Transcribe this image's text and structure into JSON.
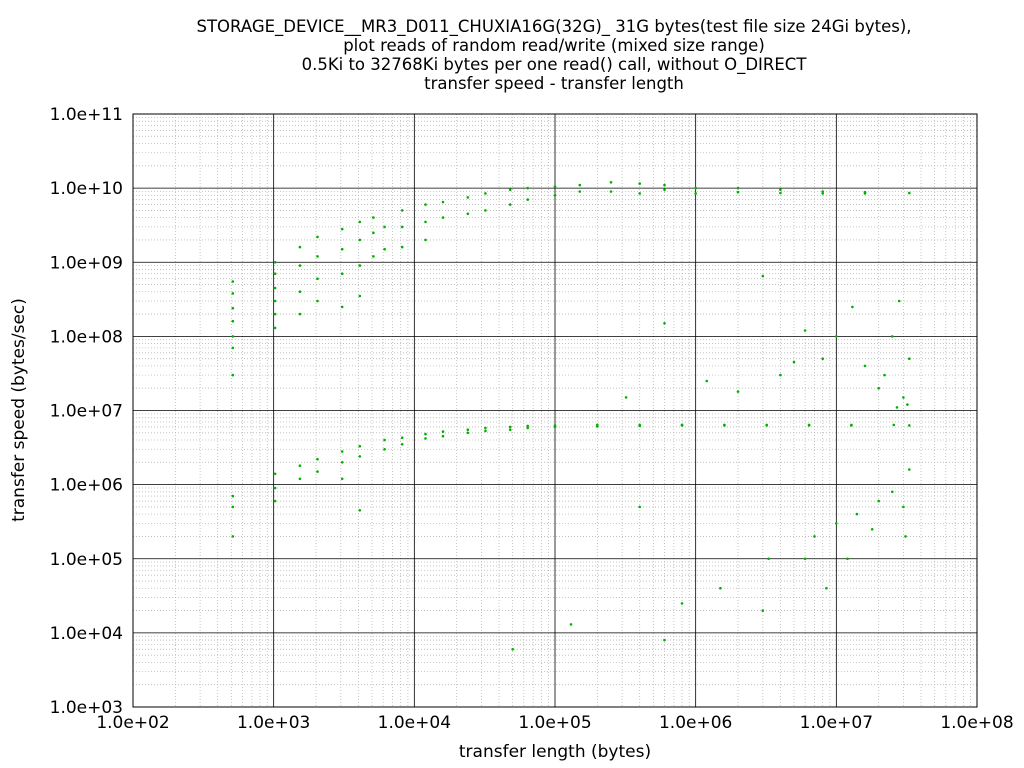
{
  "chart_data": {
    "type": "scatter",
    "title_lines": [
      "STORAGE_DEVICE__MR3_D011_CHUXIA16G(32G)_ 31G bytes(test file size 24Gi bytes),",
      "plot reads of random read/write (mixed size range)",
      "0.5Ki to 32768Ki bytes per one read() call, without O_DIRECT",
      "transfer speed - transfer length"
    ],
    "xlabel": "transfer length (bytes)",
    "ylabel": "transfer speed (bytes/sec)",
    "xscale": "log",
    "yscale": "log",
    "xlim": [
      100,
      100000000
    ],
    "ylim": [
      1000,
      100000000000
    ],
    "x_ticks": [
      "1.0e+02",
      "1.0e+03",
      "1.0e+04",
      "1.0e+05",
      "1.0e+06",
      "1.0e+07",
      "1.0e+08"
    ],
    "y_ticks": [
      "1.0e+03",
      "1.0e+04",
      "1.0e+05",
      "1.0e+06",
      "1.0e+07",
      "1.0e+08",
      "1.0e+09",
      "1.0e+10",
      "1.0e+11"
    ],
    "grid": true,
    "marker_color": "#00b000",
    "series": [
      {
        "points": [
          [
            512,
            550000000.0
          ],
          [
            512,
            380000000.0
          ],
          [
            512,
            240000000.0
          ],
          [
            512,
            160000000.0
          ],
          [
            512,
            100000000.0
          ],
          [
            512,
            70000000.0
          ],
          [
            512,
            30000000.0
          ],
          [
            1024,
            1000000000.0
          ],
          [
            1024,
            700000000.0
          ],
          [
            1024,
            450000000.0
          ],
          [
            1024,
            300000000.0
          ],
          [
            1024,
            200000000.0
          ],
          [
            1024,
            130000000.0
          ],
          [
            1536,
            1600000000.0
          ],
          [
            1536,
            900000000.0
          ],
          [
            1536,
            400000000.0
          ],
          [
            1536,
            200000000.0
          ],
          [
            2048,
            2200000000.0
          ],
          [
            2048,
            1200000000.0
          ],
          [
            2048,
            600000000.0
          ],
          [
            2048,
            300000000.0
          ],
          [
            3072,
            2800000000.0
          ],
          [
            3072,
            1500000000.0
          ],
          [
            3072,
            700000000.0
          ],
          [
            3072,
            250000000.0
          ],
          [
            4096,
            3500000000.0
          ],
          [
            4096,
            2000000000.0
          ],
          [
            4096,
            900000000.0
          ],
          [
            4096,
            350000000.0
          ],
          [
            5120,
            4000000000.0
          ],
          [
            5120,
            2500000000.0
          ],
          [
            5120,
            1200000000.0
          ],
          [
            6144,
            3000000000.0
          ],
          [
            6144,
            1500000000.0
          ],
          [
            8192,
            5000000000.0
          ],
          [
            8192,
            3000000000.0
          ],
          [
            8192,
            1600000000.0
          ],
          [
            12000.0,
            6000000000.0
          ],
          [
            12000.0,
            3500000000.0
          ],
          [
            12000.0,
            2000000000.0
          ],
          [
            16000.0,
            6500000000.0
          ],
          [
            16000.0,
            4000000000.0
          ],
          [
            24000.0,
            7500000000.0
          ],
          [
            24000.0,
            4500000000.0
          ],
          [
            32000.0,
            8500000000.0
          ],
          [
            32000.0,
            5000000000.0
          ],
          [
            48000.0,
            9500000000.0
          ],
          [
            48000.0,
            6000000000.0
          ],
          [
            64000.0,
            10000000000.0
          ],
          [
            64000.0,
            7000000000.0
          ],
          [
            100000.0,
            10500000000.0
          ],
          [
            100000.0,
            8000000000.0
          ],
          [
            150000.0,
            11000000000.0
          ],
          [
            150000.0,
            9000000000.0
          ],
          [
            250000.0,
            12000000000.0
          ],
          [
            250000.0,
            9000000000.0
          ],
          [
            400000.0,
            11500000000.0
          ],
          [
            400000.0,
            8500000000.0
          ],
          [
            600000.0,
            11000000000.0
          ],
          [
            600000.0,
            9500000000.0
          ],
          [
            1000000.0,
            10000000000.0
          ],
          [
            1000000.0,
            8500000000.0
          ],
          [
            2000000.0,
            10000000000.0
          ],
          [
            2000000.0,
            8800000000.0
          ],
          [
            4000000.0,
            9500000000.0
          ],
          [
            4000000.0,
            8600000000.0
          ],
          [
            8000000.0,
            9000000000.0
          ],
          [
            8000000.0,
            8500000000.0
          ],
          [
            16000000.0,
            8800000000.0
          ],
          [
            16000000.0,
            8500000000.0
          ],
          [
            33000000.0,
            8600000000.0
          ],
          [
            512,
            700000.0
          ],
          [
            512,
            500000.0
          ],
          [
            512,
            200000.0
          ],
          [
            1024,
            1400000.0
          ],
          [
            1024,
            900000.0
          ],
          [
            1024,
            600000.0
          ],
          [
            1536,
            1800000.0
          ],
          [
            1536,
            1200000.0
          ],
          [
            2048,
            2200000.0
          ],
          [
            2048,
            1500000.0
          ],
          [
            3072,
            2800000.0
          ],
          [
            3072,
            2000000.0
          ],
          [
            3072,
            1200000.0
          ],
          [
            4096,
            3300000.0
          ],
          [
            4096,
            2400000.0
          ],
          [
            4096,
            450000.0
          ],
          [
            6144,
            4000000.0
          ],
          [
            6144,
            3000000.0
          ],
          [
            8192,
            4300000.0
          ],
          [
            8192,
            3500000.0
          ],
          [
            12000.0,
            4800000.0
          ],
          [
            12000.0,
            4200000.0
          ],
          [
            16000.0,
            5200000.0
          ],
          [
            16000.0,
            4500000.0
          ],
          [
            24000.0,
            5500000.0
          ],
          [
            24000.0,
            5000000.0
          ],
          [
            32000.0,
            5800000.0
          ],
          [
            32000.0,
            5300000.0
          ],
          [
            48000.0,
            6000000.0
          ],
          [
            48000.0,
            5500000.0
          ],
          [
            64000.0,
            6200000.0
          ],
          [
            64000.0,
            5800000.0
          ],
          [
            100000.0,
            6300000.0
          ],
          [
            100000.0,
            6000000.0
          ],
          [
            200000.0,
            6400000.0
          ],
          [
            200000.0,
            6100000.0
          ],
          [
            400000.0,
            6400000.0
          ],
          [
            400000.0,
            6200000.0
          ],
          [
            800000.0,
            6400000.0
          ],
          [
            800000.0,
            6300000.0
          ],
          [
            1600000.0,
            6400000.0
          ],
          [
            1600000.0,
            6300000.0
          ],
          [
            3200000.0,
            6400000.0
          ],
          [
            3200000.0,
            6300000.0
          ],
          [
            6400000.0,
            6400000.0
          ],
          [
            6400000.0,
            6300000.0
          ],
          [
            12800000.0,
            6400000.0
          ],
          [
            12800000.0,
            6300000.0
          ],
          [
            25600000.0,
            6400000.0
          ],
          [
            33000000.0,
            6300000.0
          ],
          [
            320000.0,
            15000000.0
          ],
          [
            600000.0,
            150000000.0
          ],
          [
            1200000.0,
            25000000.0
          ],
          [
            2000000.0,
            18000000.0
          ],
          [
            3000000.0,
            650000000.0
          ],
          [
            4000000.0,
            30000000.0
          ],
          [
            5000000.0,
            45000000.0
          ],
          [
            6000000.0,
            120000000.0
          ],
          [
            8000000.0,
            50000000.0
          ],
          [
            10000000.0,
            100000000.0
          ],
          [
            13000000.0,
            250000000.0
          ],
          [
            16000000.0,
            40000000.0
          ],
          [
            20000000.0,
            20000000.0
          ],
          [
            25000000.0,
            100000000.0
          ],
          [
            28000000.0,
            300000000.0
          ],
          [
            30000000.0,
            15000000.0
          ],
          [
            32000000.0,
            12000000.0
          ],
          [
            33000000.0,
            50000000.0
          ],
          [
            22000000.0,
            30000000.0
          ],
          [
            27000000.0,
            11000000.0
          ],
          [
            50000.0,
            6000.0
          ],
          [
            130000.0,
            13000.0
          ],
          [
            600000.0,
            8000.0
          ],
          [
            800000.0,
            25000.0
          ],
          [
            1500000.0,
            40000.0
          ],
          [
            3000000.0,
            20000.0
          ],
          [
            3300000.0,
            100000.0
          ],
          [
            6000000.0,
            100000.0
          ],
          [
            7000000.0,
            200000.0
          ],
          [
            8500000.0,
            40000.0
          ],
          [
            10000000.0,
            300000.0
          ],
          [
            12000000.0,
            100000.0
          ],
          [
            14000000.0,
            400000.0
          ],
          [
            18000000.0,
            250000.0
          ],
          [
            25000000.0,
            800000.0
          ],
          [
            30000000.0,
            500000.0
          ],
          [
            33000000.0,
            1600000.0
          ],
          [
            31000000.0,
            200000.0
          ],
          [
            20000000.0,
            600000.0
          ],
          [
            400000.0,
            500000.0
          ]
        ]
      }
    ]
  }
}
